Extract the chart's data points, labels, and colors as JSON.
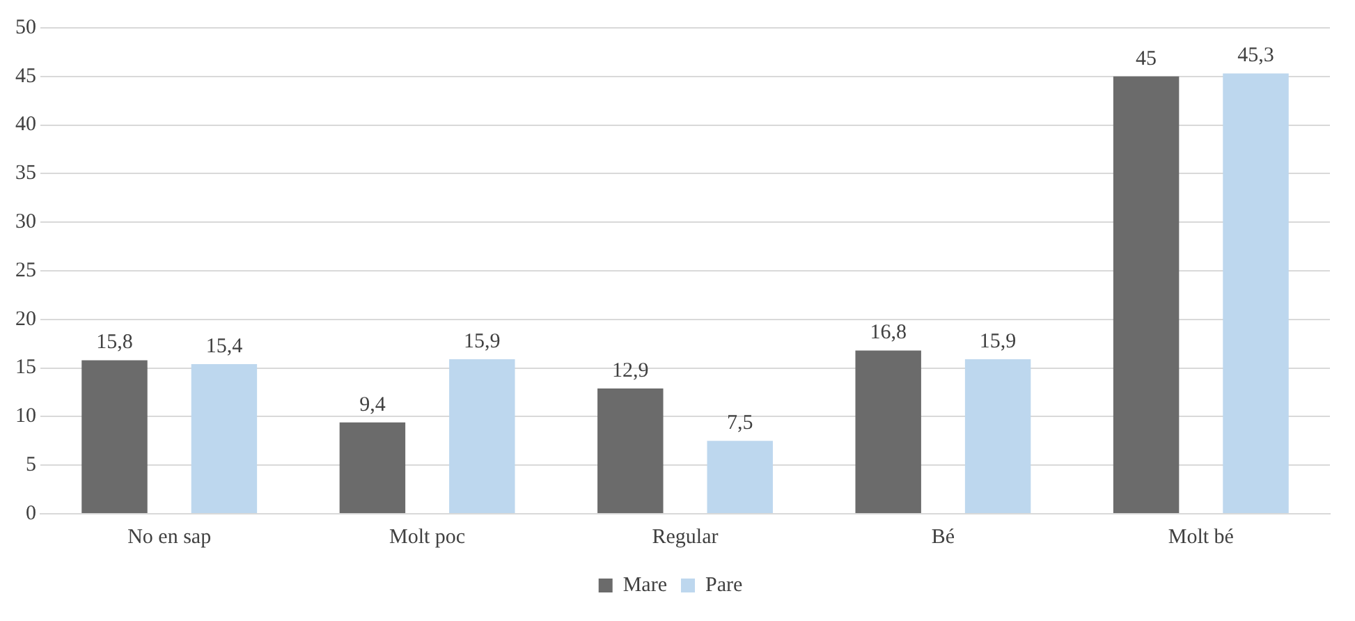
{
  "chart_data": {
    "type": "bar",
    "categories": [
      "No en sap",
      "Molt poc",
      "Regular",
      "Bé",
      "Molt bé"
    ],
    "series": [
      {
        "name": "Mare",
        "color": "#6b6b6b",
        "values": [
          15.8,
          9.4,
          12.9,
          16.8,
          45
        ],
        "value_labels": [
          "15,8",
          "9,4",
          "12,9",
          "16,8",
          "45"
        ]
      },
      {
        "name": "Pare",
        "color": "#bdd7ee",
        "values": [
          15.4,
          15.9,
          7.5,
          15.9,
          45.3
        ],
        "value_labels": [
          "15,4",
          "15,9",
          "7,5",
          "15,9",
          "45,3"
        ]
      }
    ],
    "ylim": [
      0,
      50
    ],
    "yticks": [
      0,
      5,
      10,
      15,
      20,
      25,
      30,
      35,
      40,
      45,
      50
    ],
    "grid": "y",
    "legend": "bottom"
  }
}
